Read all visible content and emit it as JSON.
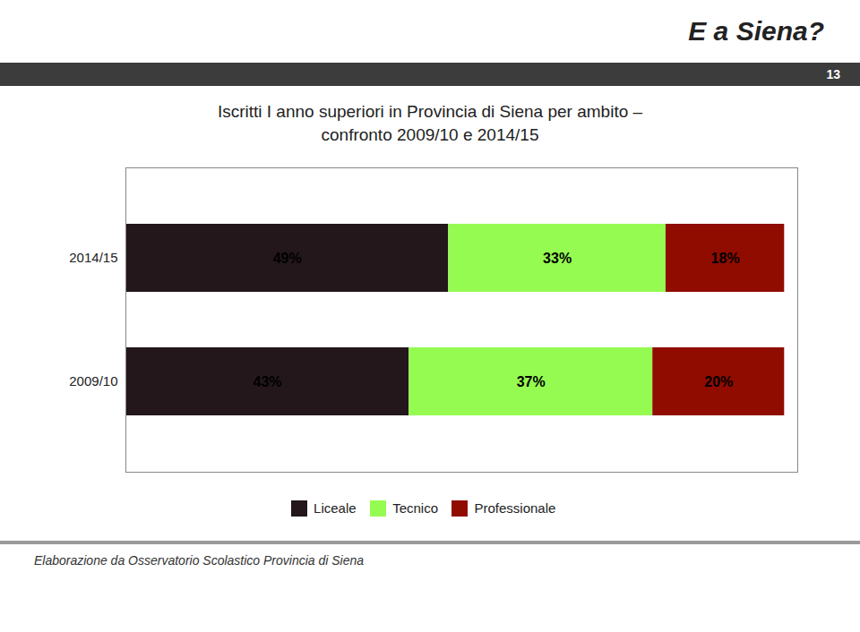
{
  "chart_data": {
    "type": "bar",
    "orientation": "horizontal",
    "stacked": true,
    "data_labels": true,
    "tick_labels": "y",
    "legend": "bottom",
    "title": "Iscritti I anno superiori in Provincia di Siena per ambito –\nconfronto 2009/10 e 2014/15",
    "annotations": [
      "E a Siena?",
      "13",
      "Elaborazione da Osservatorio Scolastico Provincia di Siena"
    ],
    "categories": [
      "2014/15",
      "2009/10"
    ],
    "series": [
      {
        "name": "Liceale",
        "values": [
          49,
          43
        ],
        "value_labels": [
          "49%",
          "43%"
        ]
      },
      {
        "name": "Tecnico",
        "values": [
          33,
          37
        ],
        "value_labels": [
          "33%",
          "37%"
        ]
      },
      {
        "name": "Professionale",
        "values": [
          18,
          20
        ],
        "value_labels": [
          "18%",
          "20%"
        ]
      }
    ],
    "xlim": [
      0,
      102
    ]
  }
}
